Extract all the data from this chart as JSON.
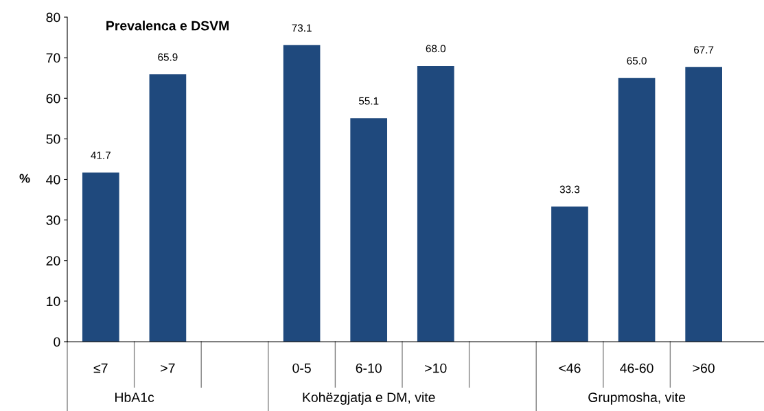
{
  "chart_data": {
    "type": "bar",
    "title": "Prevalenca e DSVM",
    "ylabel": "%",
    "categories": [
      "≤7",
      ">7",
      null,
      "0-5",
      "6-10",
      ">10",
      null,
      "<46",
      "46-60",
      ">60"
    ],
    "values": [
      41.7,
      65.9,
      null,
      73.1,
      55.1,
      68.0,
      null,
      33.3,
      65.0,
      67.7
    ],
    "value_labels": [
      "41.7",
      "65.9",
      null,
      "73.1",
      "55.1",
      "68.0",
      null,
      "33.3",
      "65.0",
      "67.7"
    ],
    "color": "#1f497d",
    "ylim": [
      0,
      80
    ],
    "yticks": [
      0,
      10,
      20,
      30,
      40,
      50,
      60,
      70,
      80
    ],
    "annotations": [
      "HbA1c",
      "Kohëzgjatja e DM, vite",
      "Grupmosha, vite"
    ],
    "grid": false
  }
}
